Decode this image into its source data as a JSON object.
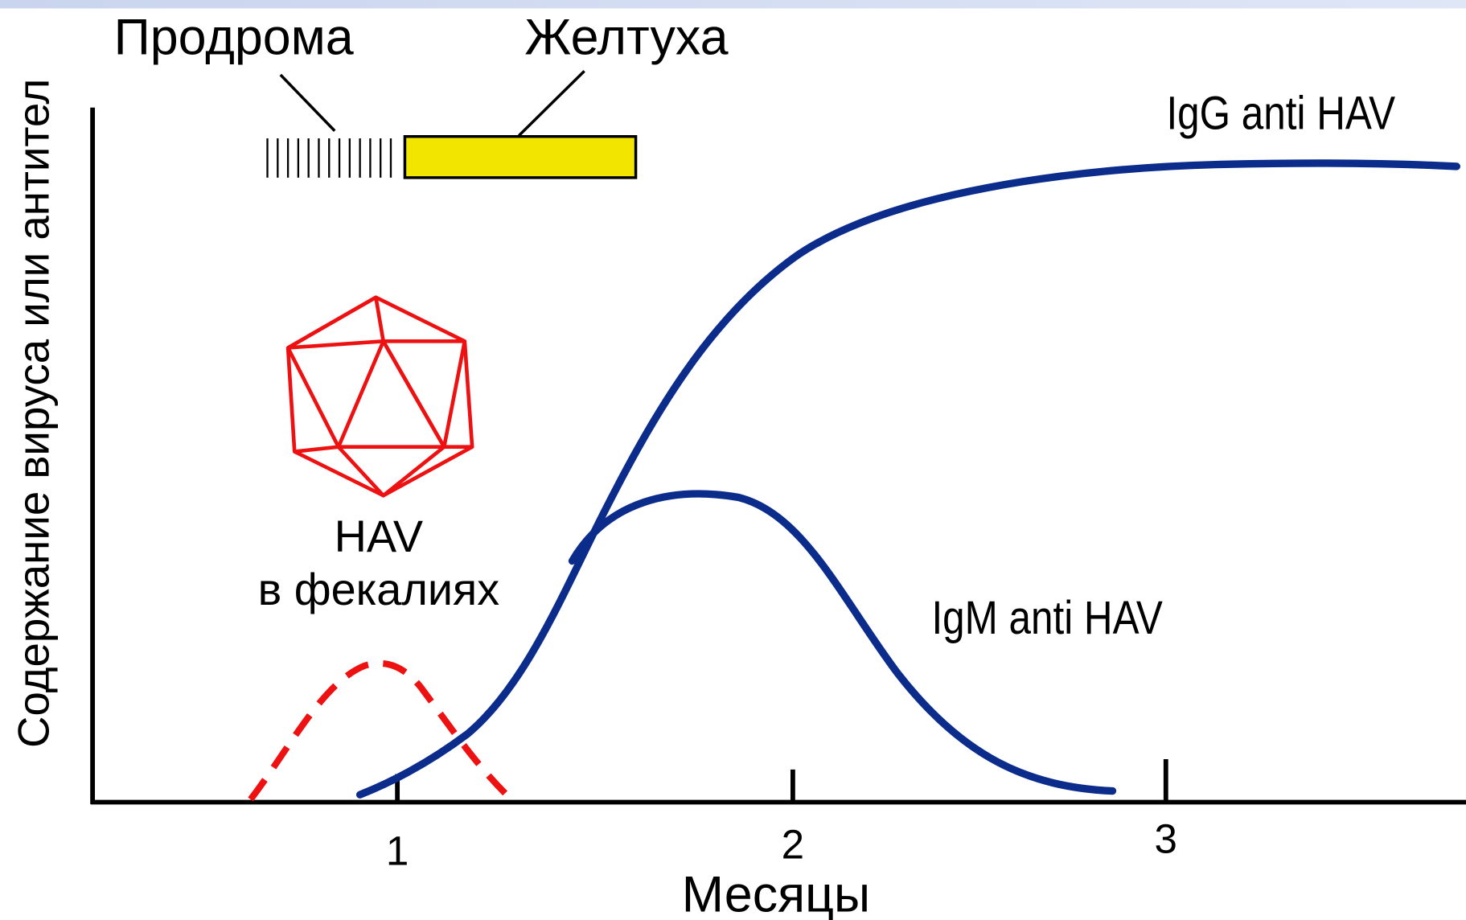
{
  "phases": {
    "prodroma": "Продрома",
    "jaundice": "Желтуха"
  },
  "axes": {
    "y_label": "Содержание вируса или антител",
    "x_label": "Месяцы",
    "x_ticks": [
      "1",
      "2",
      "3"
    ]
  },
  "curves": {
    "igg": "IgG anti HAV",
    "igm": "IgM anti HAV",
    "hav": [
      "HAV",
      "в фекалиях"
    ]
  }
}
